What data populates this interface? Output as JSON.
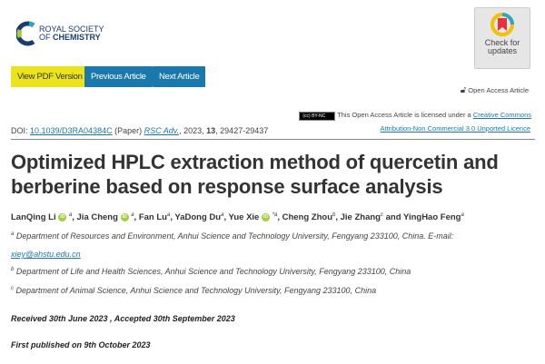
{
  "logo": {
    "line1": "ROYAL SOCIETY",
    "line2_a": "OF ",
    "line2_b": "CHEMISTRY"
  },
  "check_updates": {
    "line1": "Check for",
    "line2": "updates"
  },
  "buttons": {
    "pdf": "View PDF Version",
    "previous": "Previous Article",
    "next": "Next Article"
  },
  "open_access": {
    "label": "Open Access Article",
    "cc_badge": "BY-NC",
    "licence_text": "This Open Access Article is licensed under a ",
    "licence_link1": "Creative Commons",
    "licence_link2": "Attribution-Non Commercial 3.0 Unported Licence"
  },
  "doi": {
    "label": "DOI: ",
    "value": "10.1039/D3RA04384C",
    "type": " (Paper) ",
    "journal": "RSC Adv.",
    "year": ", 2023, ",
    "volume": "13",
    "pages": ", 29427-29437"
  },
  "title": "Optimized HPLC extraction method of quercetin and berberine based on response surface analysis",
  "authors": [
    {
      "name": "LanQing Li",
      "orcid": true,
      "sup": "a"
    },
    {
      "name": "Jia Cheng",
      "orcid": true,
      "sup": "a"
    },
    {
      "name": "Fan Lu",
      "orcid": false,
      "sup": "a"
    },
    {
      "name": "YaDong Du",
      "orcid": false,
      "sup": "a"
    },
    {
      "name": "Yue Xie",
      "orcid": true,
      "sup": "*a"
    },
    {
      "name": "Cheng Zhou",
      "orcid": false,
      "sup": "b"
    },
    {
      "name": "Jie Zhang",
      "orcid": false,
      "sup": "c"
    },
    {
      "name": "YingHao Feng",
      "orcid": false,
      "sup": "a"
    }
  ],
  "affiliations": [
    {
      "sup": "a",
      "text": "Department of Resources and Environment, Anhui Science and Technology University, Fengyang 233100, China. E-mail:",
      "email": "xiey@ahstu.edu.cn"
    },
    {
      "sup": "b",
      "text": "Department of Life and Health Sciences, Anhui Science and Technology University, Fengyang 233100, China"
    },
    {
      "sup": "c",
      "text": "Department of Animal Science, Anhui Science and Technology University, Fengyang 233100, China"
    }
  ],
  "dates": {
    "received": "Received 30th June 2023 , Accepted 30th September 2023",
    "published": "First published on 9th October 2023"
  },
  "colors": {
    "button_blue": "#1a78ac",
    "button_yellow": "#ece31a",
    "orcid_green": "#a6ce39"
  }
}
